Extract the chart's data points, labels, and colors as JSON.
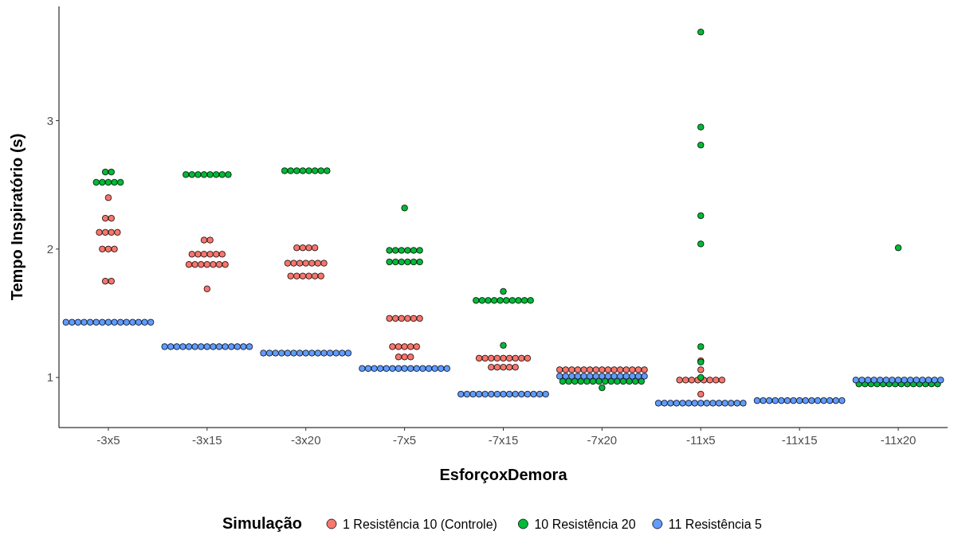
{
  "chart_data": {
    "type": "scatter",
    "xlabel": "EsforçoxDemora",
    "ylabel": "Tempo Inspiratório (s)",
    "legend_title": "Simulação",
    "legend": "bottom",
    "marker": "circle",
    "grid": false,
    "categories": [
      "-3x5",
      "-3x15",
      "-3x20",
      "-7x5",
      "-7x15",
      "-7x20",
      "-11x5",
      "-11x15",
      "-11x20"
    ],
    "ylim": [
      0.61,
      3.89
    ],
    "yticks": [
      1,
      2,
      3
    ],
    "series": [
      {
        "name": "1 Resistência 10 (Controle)",
        "color": "#f8766d",
        "x": [
          "-3x5",
          "-3x5",
          "-3x5",
          "-3x5",
          "-3x5",
          "-3x5",
          "-3x5",
          "-3x5",
          "-3x5",
          "-3x5",
          "-3x5",
          "-3x5",
          "-3x15",
          "-3x15",
          "-3x15",
          "-3x15",
          "-3x15",
          "-3x15",
          "-3x15",
          "-3x15",
          "-3x15",
          "-3x15",
          "-3x15",
          "-3x15",
          "-3x15",
          "-3x15",
          "-3x15",
          "-3x15",
          "-3x20",
          "-3x20",
          "-3x20",
          "-3x20",
          "-3x20",
          "-3x20",
          "-3x20",
          "-3x20",
          "-3x20",
          "-3x20",
          "-3x20",
          "-3x20",
          "-3x20",
          "-3x20",
          "-3x20",
          "-3x20",
          "-3x20",
          "-7x5",
          "-7x5",
          "-7x5",
          "-7x5",
          "-7x5",
          "-7x5",
          "-7x5",
          "-7x5",
          "-7x5",
          "-7x5",
          "-7x5",
          "-7x5",
          "-7x5",
          "-7x5",
          "-7x15",
          "-7x15",
          "-7x15",
          "-7x15",
          "-7x15",
          "-7x15",
          "-7x15",
          "-7x15",
          "-7x15",
          "-7x15",
          "-7x15",
          "-7x15",
          "-7x15",
          "-7x15",
          "-7x20",
          "-7x20",
          "-7x20",
          "-7x20",
          "-7x20",
          "-7x20",
          "-7x20",
          "-7x20",
          "-7x20",
          "-7x20",
          "-7x20",
          "-7x20",
          "-7x20",
          "-7x20",
          "-7x20",
          "-11x5",
          "-11x5",
          "-11x5",
          "-11x5",
          "-11x5",
          "-11x5",
          "-11x5",
          "-11x5",
          "-11x5",
          "-11x5",
          "-11x5"
        ],
        "values": [
          2.4,
          2.24,
          2.24,
          2.13,
          2.13,
          2.13,
          2.13,
          2.0,
          2.0,
          2.0,
          1.75,
          1.75,
          2.07,
          2.07,
          1.96,
          1.96,
          1.96,
          1.96,
          1.96,
          1.96,
          1.88,
          1.88,
          1.88,
          1.88,
          1.88,
          1.88,
          1.88,
          1.69,
          2.01,
          2.01,
          2.01,
          2.01,
          1.89,
          1.89,
          1.89,
          1.89,
          1.89,
          1.89,
          1.89,
          1.79,
          1.79,
          1.79,
          1.79,
          1.79,
          1.79,
          1.46,
          1.46,
          1.46,
          1.46,
          1.46,
          1.46,
          1.24,
          1.24,
          1.24,
          1.24,
          1.24,
          1.16,
          1.16,
          1.16,
          1.15,
          1.15,
          1.15,
          1.15,
          1.15,
          1.15,
          1.15,
          1.15,
          1.15,
          1.08,
          1.08,
          1.08,
          1.08,
          1.08,
          1.06,
          1.06,
          1.06,
          1.06,
          1.06,
          1.06,
          1.06,
          1.06,
          1.06,
          1.06,
          1.06,
          1.06,
          1.06,
          1.06,
          1.06,
          1.13,
          1.06,
          0.98,
          0.98,
          0.98,
          0.98,
          0.98,
          0.98,
          0.98,
          0.98,
          0.87
        ]
      },
      {
        "name": "10 Resistência 20",
        "color": "#00ba38",
        "x": [
          "-3x5",
          "-3x5",
          "-3x5",
          "-3x5",
          "-3x5",
          "-3x5",
          "-3x5",
          "-3x15",
          "-3x15",
          "-3x15",
          "-3x15",
          "-3x15",
          "-3x15",
          "-3x15",
          "-3x15",
          "-3x20",
          "-3x20",
          "-3x20",
          "-3x20",
          "-3x20",
          "-3x20",
          "-3x20",
          "-3x20",
          "-7x5",
          "-7x5",
          "-7x5",
          "-7x5",
          "-7x5",
          "-7x5",
          "-7x5",
          "-7x5",
          "-7x5",
          "-7x5",
          "-7x5",
          "-7x5",
          "-7x5",
          "-7x15",
          "-7x15",
          "-7x15",
          "-7x15",
          "-7x15",
          "-7x15",
          "-7x15",
          "-7x15",
          "-7x15",
          "-7x15",
          "-7x15",
          "-7x15",
          "-7x20",
          "-7x20",
          "-7x20",
          "-7x20",
          "-7x20",
          "-7x20",
          "-7x20",
          "-7x20",
          "-7x20",
          "-7x20",
          "-7x20",
          "-7x20",
          "-7x20",
          "-7x20",
          "-7x20",
          "-11x5",
          "-11x5",
          "-11x5",
          "-11x5",
          "-11x5",
          "-11x5",
          "-11x5",
          "-11x5",
          "-11x20",
          "-11x20",
          "-11x20",
          "-11x20",
          "-11x20",
          "-11x20",
          "-11x20",
          "-11x20",
          "-11x20",
          "-11x20",
          "-11x20",
          "-11x20",
          "-11x20",
          "-11x20",
          "-11x20"
        ],
        "values": [
          2.6,
          2.6,
          2.52,
          2.52,
          2.52,
          2.52,
          2.52,
          2.58,
          2.58,
          2.58,
          2.58,
          2.58,
          2.58,
          2.58,
          2.58,
          2.61,
          2.61,
          2.61,
          2.61,
          2.61,
          2.61,
          2.61,
          2.61,
          2.32,
          1.99,
          1.99,
          1.99,
          1.99,
          1.99,
          1.99,
          1.9,
          1.9,
          1.9,
          1.9,
          1.9,
          1.9,
          1.67,
          1.6,
          1.6,
          1.6,
          1.6,
          1.6,
          1.6,
          1.6,
          1.6,
          1.6,
          1.6,
          1.25,
          0.97,
          0.97,
          0.97,
          0.97,
          0.97,
          0.97,
          0.97,
          0.97,
          0.97,
          0.97,
          0.97,
          0.97,
          0.97,
          0.97,
          0.92,
          3.69,
          2.95,
          2.81,
          2.26,
          2.04,
          1.24,
          1.12,
          1.0,
          2.01,
          0.95,
          0.95,
          0.95,
          0.95,
          0.95,
          0.95,
          0.95,
          0.95,
          0.95,
          0.95,
          0.95,
          0.95,
          0.95,
          0.95
        ]
      },
      {
        "name": "11 Resistência 5",
        "color": "#619cff",
        "x": [
          "-3x5",
          "-3x5",
          "-3x5",
          "-3x5",
          "-3x5",
          "-3x5",
          "-3x5",
          "-3x5",
          "-3x5",
          "-3x5",
          "-3x5",
          "-3x5",
          "-3x5",
          "-3x5",
          "-3x5",
          "-3x15",
          "-3x15",
          "-3x15",
          "-3x15",
          "-3x15",
          "-3x15",
          "-3x15",
          "-3x15",
          "-3x15",
          "-3x15",
          "-3x15",
          "-3x15",
          "-3x15",
          "-3x15",
          "-3x15",
          "-3x20",
          "-3x20",
          "-3x20",
          "-3x20",
          "-3x20",
          "-3x20",
          "-3x20",
          "-3x20",
          "-3x20",
          "-3x20",
          "-3x20",
          "-3x20",
          "-3x20",
          "-3x20",
          "-3x20",
          "-7x5",
          "-7x5",
          "-7x5",
          "-7x5",
          "-7x5",
          "-7x5",
          "-7x5",
          "-7x5",
          "-7x5",
          "-7x5",
          "-7x5",
          "-7x5",
          "-7x5",
          "-7x5",
          "-7x5",
          "-7x15",
          "-7x15",
          "-7x15",
          "-7x15",
          "-7x15",
          "-7x15",
          "-7x15",
          "-7x15",
          "-7x15",
          "-7x15",
          "-7x15",
          "-7x15",
          "-7x15",
          "-7x15",
          "-7x15",
          "-7x20",
          "-7x20",
          "-7x20",
          "-7x20",
          "-7x20",
          "-7x20",
          "-7x20",
          "-7x20",
          "-7x20",
          "-7x20",
          "-7x20",
          "-7x20",
          "-7x20",
          "-7x20",
          "-7x20",
          "-11x5",
          "-11x5",
          "-11x5",
          "-11x5",
          "-11x5",
          "-11x5",
          "-11x5",
          "-11x5",
          "-11x5",
          "-11x5",
          "-11x5",
          "-11x5",
          "-11x5",
          "-11x5",
          "-11x5",
          "-11x15",
          "-11x15",
          "-11x15",
          "-11x15",
          "-11x15",
          "-11x15",
          "-11x15",
          "-11x15",
          "-11x15",
          "-11x15",
          "-11x15",
          "-11x15",
          "-11x15",
          "-11x15",
          "-11x15",
          "-11x20",
          "-11x20",
          "-11x20",
          "-11x20",
          "-11x20",
          "-11x20",
          "-11x20",
          "-11x20",
          "-11x20",
          "-11x20",
          "-11x20",
          "-11x20",
          "-11x20",
          "-11x20",
          "-11x20"
        ],
        "values": [
          1.43,
          1.43,
          1.43,
          1.43,
          1.43,
          1.43,
          1.43,
          1.43,
          1.43,
          1.43,
          1.43,
          1.43,
          1.43,
          1.43,
          1.43,
          1.24,
          1.24,
          1.24,
          1.24,
          1.24,
          1.24,
          1.24,
          1.24,
          1.24,
          1.24,
          1.24,
          1.24,
          1.24,
          1.24,
          1.24,
          1.19,
          1.19,
          1.19,
          1.19,
          1.19,
          1.19,
          1.19,
          1.19,
          1.19,
          1.19,
          1.19,
          1.19,
          1.19,
          1.19,
          1.19,
          1.07,
          1.07,
          1.07,
          1.07,
          1.07,
          1.07,
          1.07,
          1.07,
          1.07,
          1.07,
          1.07,
          1.07,
          1.07,
          1.07,
          1.07,
          0.87,
          0.87,
          0.87,
          0.87,
          0.87,
          0.87,
          0.87,
          0.87,
          0.87,
          0.87,
          0.87,
          0.87,
          0.87,
          0.87,
          0.87,
          1.01,
          1.01,
          1.01,
          1.01,
          1.01,
          1.01,
          1.01,
          1.01,
          1.01,
          1.01,
          1.01,
          1.01,
          1.01,
          1.01,
          1.01,
          0.8,
          0.8,
          0.8,
          0.8,
          0.8,
          0.8,
          0.8,
          0.8,
          0.8,
          0.8,
          0.8,
          0.8,
          0.8,
          0.8,
          0.8,
          0.82,
          0.82,
          0.82,
          0.82,
          0.82,
          0.82,
          0.82,
          0.82,
          0.82,
          0.82,
          0.82,
          0.82,
          0.82,
          0.82,
          0.82,
          0.98,
          0.98,
          0.98,
          0.98,
          0.98,
          0.98,
          0.98,
          0.98,
          0.98,
          0.98,
          0.98,
          0.98,
          0.98,
          0.98,
          0.98
        ]
      }
    ]
  }
}
